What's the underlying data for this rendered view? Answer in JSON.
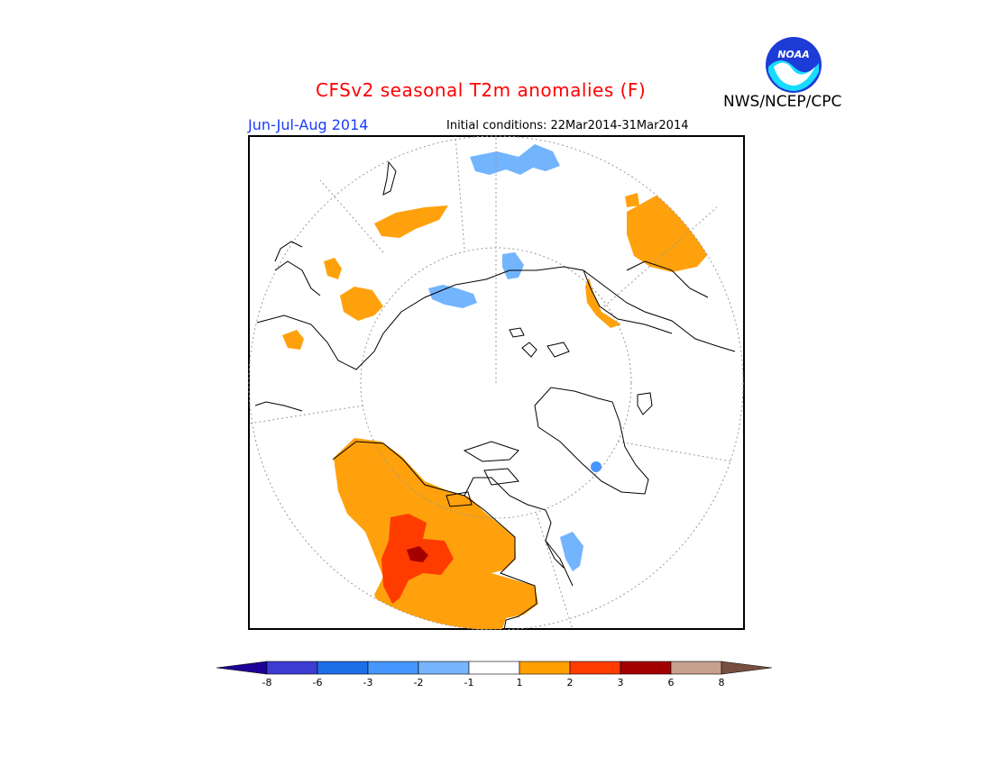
{
  "header": {
    "title": "CFSv2 seasonal T2m anomalies (F)",
    "season": "Jun-Jul-Aug 2014",
    "initial_conditions": "Initial conditions: 22Mar2014-31Mar2014",
    "agency": "NWS/NCEP/CPC",
    "logo_text": "NOAA"
  },
  "colors": {
    "title": "#ff0000",
    "season": "#1a3cff",
    "warm_1_2": "#ffa10c",
    "warm_2_3": "#ff3c00",
    "warm_3_6": "#a50000",
    "cool_m1_m2": "#73b4ff",
    "cool_m2_m3": "#4696ff"
  },
  "legend": {
    "tick_labels": [
      "-8",
      "-6",
      "-3",
      "-2",
      "-1",
      "1",
      "2",
      "3",
      "6",
      "8"
    ],
    "bins": [
      {
        "color": "#1e0096"
      },
      {
        "color": "#3c3cd2"
      },
      {
        "color": "#1e6ee6"
      },
      {
        "color": "#4696ff"
      },
      {
        "color": "#78b4ff"
      },
      {
        "color": "#ffffff"
      },
      {
        "color": "#ffa000"
      },
      {
        "color": "#ff3c00"
      },
      {
        "color": "#a50000"
      },
      {
        "color": "#c8a090"
      },
      {
        "color": "#785040"
      }
    ]
  }
}
